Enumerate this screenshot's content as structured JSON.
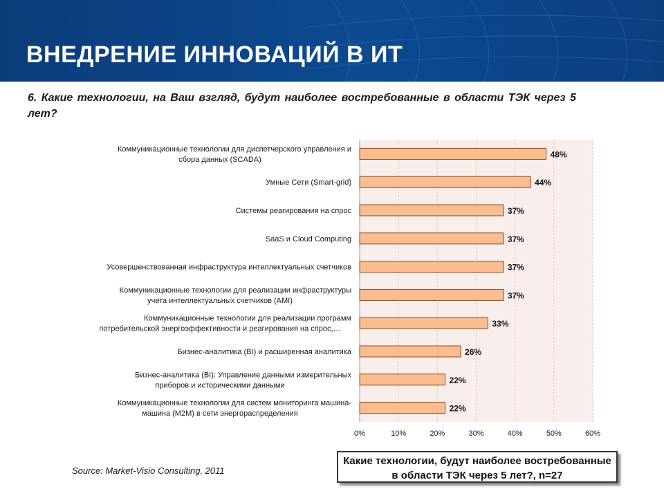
{
  "slide": {
    "title": "ВНЕДРЕНИЕ ИННОВАЦИЙ В ИТ",
    "question": "6. Какие технологии, на Ваш взгляд,  будут наиболее востребованные  в области ТЭК через 5 лет?",
    "source": "Source: Market-Visio Consulting, 2011",
    "caption_line1": "Какие технологии, будут наиболее востребованные",
    "caption_line2": "в области ТЭК  через 5 лет?, n=27"
  },
  "colors": {
    "header_bg": "#0d4a90",
    "bar_fill": "#f9bd8f",
    "bar_stroke": "#8a4a1f",
    "plot_bg": "#f8eeec"
  },
  "chart_data": {
    "type": "bar",
    "orientation": "horizontal",
    "categories": [
      [
        "Коммуникационные технологии для диспетчерского управления и",
        "сбора данных (SCADA)"
      ],
      [
        "Умные Сети (Smart-grid)"
      ],
      [
        "Системы реагирования на спрос"
      ],
      [
        "SaaS и Cloud Computing"
      ],
      [
        "Усовершенствованная инфраструктура интеллектуальных счетчиков"
      ],
      [
        "Коммуникационные технологии для  реализации инфраструктуры",
        "учета интеллектуальных счетчиков (AMI)"
      ],
      [
        "Коммуникационные технологии для реализации программ",
        "потребительской энергоэффективности  и  реагирования на спрос,…"
      ],
      [
        "Бизнес-аналитика (BI) и расширенная аналитика"
      ],
      [
        "Бизнес-аналитика (BI): Управление данными измерительных",
        "приборов и историческими данными"
      ],
      [
        "Коммуникационные технологии для систем мониторинга  машина-",
        "машина (M2M) в сети энергораспределения"
      ]
    ],
    "values": [
      48,
      44,
      37,
      37,
      37,
      37,
      33,
      26,
      22,
      22
    ],
    "data_labels": [
      "48%",
      "44%",
      "37%",
      "37%",
      "37%",
      "37%",
      "33%",
      "26%",
      "22%",
      "22%"
    ],
    "xlim": [
      0,
      60
    ],
    "xticks": [
      0,
      10,
      20,
      30,
      40,
      50,
      60
    ],
    "xtick_labels": [
      "0%",
      "10%",
      "20%",
      "30%",
      "40%",
      "50%",
      "60%"
    ],
    "grid": true,
    "legend": "none"
  }
}
